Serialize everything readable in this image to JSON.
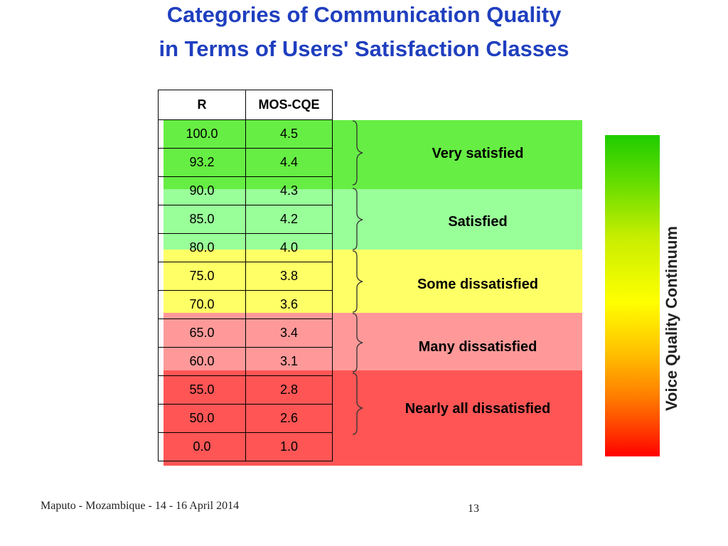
{
  "title": {
    "line1": "Categories of Communication Quality",
    "line2": "in Terms of Users' Satisfaction Classes"
  },
  "table": {
    "headers": [
      "R",
      "MOS-CQE"
    ],
    "rows": [
      [
        "100.0",
        "4.5"
      ],
      [
        "93.2",
        "4.4"
      ],
      [
        "90.0",
        "4.3"
      ],
      [
        "85.0",
        "4.2"
      ],
      [
        "80.0",
        "4.0"
      ],
      [
        "75.0",
        "3.8"
      ],
      [
        "70.0",
        "3.6"
      ],
      [
        "65.0",
        "3.4"
      ],
      [
        "60.0",
        "3.1"
      ],
      [
        "55.0",
        "2.8"
      ],
      [
        "50.0",
        "2.6"
      ],
      [
        "0.0",
        "1.0"
      ]
    ]
  },
  "categories": [
    {
      "label": "Very satisfied",
      "color": "#66ee44"
    },
    {
      "label": "Satisfied",
      "color": "#99ff99"
    },
    {
      "label": "Some dissatisfied",
      "color": "#ffff66"
    },
    {
      "label": "Many dissatisfied",
      "color": "#ff9999"
    },
    {
      "label": "Nearly all dissatisfied",
      "color": "#ff5555"
    }
  ],
  "scale": {
    "label": "Voice Quality Continuum",
    "top_color": "#1fcc00",
    "bottom_color": "#ff0000"
  },
  "footer": {
    "event": "Maputo - Mozambique - 14 - 16 April 2014",
    "page_number": "13"
  }
}
